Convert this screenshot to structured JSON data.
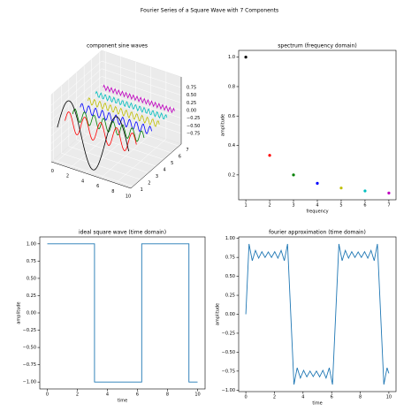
{
  "title": "Fourier Series of a Square Wave with 7 Components",
  "chart_data": [
    {
      "type": "line3d",
      "title": "component sine waves",
      "x": [
        0,
        0.121,
        0.242,
        0.362,
        0.483,
        0.604,
        0.725,
        0.846,
        0.967,
        1.087,
        1.208,
        1.329,
        1.45,
        1.571,
        1.692,
        1.812,
        1.933,
        2.054,
        2.175,
        2.296,
        2.417,
        2.537,
        2.658,
        2.779,
        2.9,
        3.021,
        3.142,
        3.262,
        3.383,
        3.504,
        3.625,
        3.746,
        3.867,
        3.987,
        4.108,
        4.229,
        4.35,
        4.471,
        4.592,
        4.712,
        4.833,
        4.954,
        5.075,
        5.196,
        5.317,
        5.437,
        5.558,
        5.679,
        5.8,
        5.921,
        6.042,
        6.162,
        6.283,
        6.404,
        6.525,
        6.646,
        6.767,
        6.887,
        7.008,
        7.129,
        7.25,
        7.371,
        7.492,
        7.612,
        7.733,
        7.854,
        7.975,
        8.096,
        8.217,
        8.337,
        8.458,
        8.579,
        8.7,
        8.821,
        8.942,
        9.062,
        9.183,
        9.304,
        9.425
      ],
      "series": [
        {
          "y": 1,
          "color": "#000000",
          "values": [
            0,
            0.121,
            0.239,
            0.355,
            0.465,
            0.568,
            0.663,
            0.749,
            0.823,
            0.885,
            0.935,
            0.971,
            0.993,
            1,
            0.993,
            0.971,
            0.935,
            0.885,
            0.823,
            0.749,
            0.663,
            0.568,
            0.465,
            0.355,
            0.239,
            0.121,
            0,
            -0.121,
            -0.239,
            -0.355,
            -0.465,
            -0.568,
            -0.663,
            -0.749,
            -0.823,
            -0.885,
            -0.935,
            -0.971,
            -0.993,
            -1,
            -0.993,
            -0.971,
            -0.935,
            -0.885,
            -0.823,
            -0.749,
            -0.663,
            -0.568,
            -0.465,
            -0.355,
            -0.239,
            -0.121,
            0,
            0.121,
            0.239,
            0.355,
            0.465,
            0.568,
            0.663,
            0.749,
            0.823,
            0.885,
            0.935,
            0.971,
            0.993,
            1,
            0.993,
            0.971,
            0.935,
            0.885,
            0.823,
            0.749,
            0.663,
            0.568,
            0.465,
            0.355,
            0.239,
            0.121,
            0
          ]
        },
        {
          "y": 2,
          "color": "#ff0000",
          "values": [
            0,
            0.118,
            0.221,
            0.295,
            0.331,
            0.324,
            0.274,
            0.189,
            0.08,
            -0.04,
            -0.155,
            -0.25,
            -0.312,
            -0.333,
            -0.312,
            -0.25,
            -0.155,
            -0.04,
            0.08,
            0.189,
            0.274,
            0.324,
            0.331,
            0.295,
            0.221,
            0.118,
            0,
            -0.118,
            -0.221,
            -0.295,
            -0.331,
            -0.324,
            -0.274,
            -0.189,
            -0.08,
            0.04,
            0.155,
            0.25,
            0.312,
            0.333,
            0.312,
            0.25,
            0.155,
            0.04,
            -0.08,
            -0.189,
            -0.274,
            -0.324,
            -0.331,
            -0.295,
            -0.221,
            -0.118,
            0,
            0.118,
            0.221,
            0.295,
            0.331,
            0.324,
            0.274,
            0.189,
            0.08,
            -0.04,
            -0.155,
            -0.25,
            -0.312,
            -0.333,
            -0.312,
            -0.25,
            -0.155,
            -0.04,
            0.08,
            0.189,
            0.274,
            0.324,
            0.331,
            0.295,
            0.221,
            0.118,
            0
          ]
        },
        {
          "y": 3,
          "color": "#008000",
          "values": [
            0,
            0.114,
            0.187,
            0.194,
            0.133,
            0.024,
            -0.093,
            -0.177,
            -0.199,
            -0.15,
            -0.048,
            0.071,
            0.165,
            0.2,
            0.165,
            0.071,
            -0.048,
            -0.15,
            -0.199,
            -0.177,
            -0.093,
            0.024,
            0.133,
            0.194,
            0.187,
            0.114,
            0,
            -0.114,
            -0.187,
            -0.194,
            -0.133,
            -0.024,
            0.093,
            0.177,
            0.199,
            0.15,
            0.048,
            -0.071,
            -0.165,
            -0.2,
            -0.165,
            -0.071,
            0.048,
            0.15,
            0.199,
            0.177,
            0.093,
            -0.024,
            -0.133,
            -0.194,
            -0.187,
            -0.114,
            0,
            0.114,
            0.187,
            0.194,
            0.133,
            0.024,
            -0.093,
            -0.177,
            -0.199,
            -0.15,
            -0.048,
            0.071,
            0.165,
            0.2,
            0.165,
            0.071,
            -0.048,
            -0.15,
            -0.199,
            -0.177,
            -0.093,
            0.024,
            0.133,
            0.194,
            0.187,
            0.114,
            0
          ]
        },
        {
          "y": 4,
          "color": "#0000ff",
          "values": [
            0,
            0.107,
            0.142,
            0.081,
            -0.034,
            -0.127,
            -0.134,
            -0.051,
            0.066,
            0.139,
            0.118,
            0.017,
            -0.095,
            -0.143,
            -0.095,
            0.017,
            0.118,
            0.139,
            0.066,
            -0.051,
            -0.134,
            -0.127,
            -0.034,
            0.081,
            0.142,
            0.107,
            0,
            -0.107,
            -0.142,
            -0.081,
            0.034,
            0.127,
            0.134,
            0.051,
            -0.066,
            -0.139,
            -0.118,
            -0.017,
            0.095,
            0.143,
            0.095,
            -0.017,
            -0.118,
            -0.139,
            -0.066,
            0.051,
            0.134,
            0.127,
            0.034,
            -0.081,
            -0.142,
            -0.107,
            0,
            0.107,
            0.142,
            0.081,
            -0.034,
            -0.127,
            -0.134,
            -0.051,
            0.066,
            0.139,
            0.118,
            0.017,
            -0.095,
            -0.143,
            -0.095,
            0.017,
            0.118,
            0.139,
            0.066,
            -0.051,
            -0.134,
            -0.127,
            -0.034,
            0.081,
            0.142,
            0.107,
            0
          ]
        },
        {
          "y": 5,
          "color": "#bfbf00",
          "values": [
            0,
            0.098,
            0.091,
            -0.013,
            -0.104,
            -0.083,
            0.027,
            0.108,
            0.074,
            -0.039,
            -0.11,
            -0.063,
            0.052,
            0.111,
            0.052,
            -0.063,
            -0.11,
            -0.039,
            0.074,
            0.108,
            0.027,
            -0.083,
            -0.104,
            -0.013,
            0.091,
            0.098,
            0,
            -0.098,
            -0.091,
            0.013,
            0.104,
            0.083,
            -0.027,
            -0.108,
            -0.074,
            0.039,
            0.11,
            0.063,
            -0.052,
            -0.111,
            -0.052,
            0.063,
            0.11,
            0.039,
            -0.074,
            -0.108,
            -0.027,
            0.083,
            0.104,
            0.013,
            -0.091,
            -0.098,
            0,
            0.098,
            0.091,
            -0.013,
            -0.104,
            -0.083,
            0.027,
            0.108,
            0.074,
            -0.039,
            -0.11,
            -0.063,
            0.052,
            0.111,
            0.052,
            -0.063,
            -0.11,
            -0.039,
            0.074,
            0.108,
            0.027,
            -0.083,
            -0.104,
            -0.013,
            0.091,
            0.098,
            0
          ]
        },
        {
          "y": 6,
          "color": "#00bfbf",
          "values": [
            0,
            0.088,
            0.042,
            -0.068,
            -0.075,
            0.032,
            0.09,
            0.011,
            -0.085,
            -0.052,
            0.06,
            0.081,
            -0.022,
            -0.091,
            -0.022,
            0.081,
            0.06,
            -0.052,
            -0.085,
            0.011,
            0.09,
            0.032,
            -0.075,
            -0.068,
            0.042,
            0.088,
            0,
            -0.088,
            -0.042,
            0.068,
            0.075,
            -0.032,
            -0.09,
            -0.011,
            0.085,
            0.052,
            -0.06,
            -0.081,
            0.022,
            0.091,
            0.022,
            -0.081,
            -0.06,
            0.052,
            0.085,
            -0.011,
            -0.09,
            -0.032,
            0.075,
            0.068,
            -0.042,
            -0.088,
            0,
            0.088,
            0.042,
            -0.068,
            -0.075,
            0.032,
            0.09,
            0.011,
            -0.085,
            -0.052,
            0.06,
            0.081,
            -0.022,
            -0.091,
            -0.022,
            0.081,
            0.06,
            -0.052,
            -0.085,
            0.011,
            0.09,
            0.032,
            -0.075,
            -0.068,
            0.042,
            0.088,
            0
          ]
        },
        {
          "y": 7,
          "color": "#bf00bf",
          "values": [
            0,
            0.077,
            0,
            -0.077,
            0,
            0.077,
            0,
            -0.077,
            0,
            0.077,
            0,
            -0.077,
            0,
            0.077,
            0,
            -0.077,
            0,
            0.077,
            0,
            -0.077,
            0,
            0.077,
            0,
            -0.077,
            0,
            0.077,
            0,
            -0.077,
            0,
            0.077,
            0,
            -0.077,
            0,
            0.077,
            0,
            -0.077,
            0,
            0.077,
            0,
            -0.077,
            0,
            0.077,
            0,
            -0.077,
            0,
            0.077,
            0,
            -0.077,
            0,
            0.077,
            0,
            -0.077,
            0,
            0.077,
            0,
            -0.077,
            0,
            0.077,
            0,
            -0.077,
            0,
            0.077,
            0,
            -0.077,
            0,
            0.077,
            0,
            -0.077,
            0,
            0.077,
            0,
            -0.077,
            0,
            0.077,
            0,
            -0.077,
            0,
            0.077,
            0
          ]
        }
      ],
      "xlim": [
        -0.5,
        10
      ],
      "ylim": [
        0.7,
        7.3
      ],
      "zlim": [
        -1.1,
        1.1
      ],
      "xticks": [
        0,
        2,
        4,
        6,
        8,
        10
      ],
      "yticks": [
        1,
        2,
        3,
        4,
        5,
        6,
        7
      ],
      "zticks": [
        {
          "value": -0.75,
          "label": "−0.75"
        },
        {
          "value": -0.5,
          "label": "−0.50"
        },
        {
          "value": -0.25,
          "label": "−0.25"
        },
        {
          "value": 0,
          "label": "0.00"
        },
        0.25,
        {
          "value": 0.5,
          "label": "0.50"
        },
        0.75
      ]
    },
    {
      "type": "scatter",
      "title": "spectrum (frequency domain)",
      "xlabel": "frequency",
      "ylabel": "amplitude",
      "x": [
        1,
        2,
        3,
        4,
        5,
        6,
        7
      ],
      "values": [
        1,
        0.333,
        0.2,
        0.143,
        0.111,
        0.091,
        0.077
      ],
      "colors": [
        "#000000",
        "#ff0000",
        "#008000",
        "#0000ff",
        "#bfbf00",
        "#00bfbf",
        "#bf00bf"
      ],
      "xlim": [
        0.7,
        7.3
      ],
      "ylim": [
        0.031,
        1.046
      ],
      "xticks": [
        1,
        2,
        3,
        4,
        5,
        6,
        7
      ],
      "yticks": [
        0.2,
        0.4,
        0.6,
        0.8,
        {
          "value": 1,
          "label": "1.0"
        }
      ]
    },
    {
      "type": "line",
      "title": "ideal square wave (time domain)",
      "xlabel": "time",
      "ylabel": "amplitude",
      "color": "#1f77b4",
      "x": [
        0,
        3.142,
        3.142,
        6.283,
        6.283,
        9.425,
        9.425,
        10
      ],
      "values": [
        1,
        1,
        -1,
        -1,
        1,
        1,
        -1,
        -1
      ],
      "xlim": [
        -0.5,
        10.5
      ],
      "ylim": [
        -1.1,
        1.1
      ],
      "xticks": [
        0,
        2,
        4,
        6,
        8,
        10
      ],
      "yticks": [
        {
          "value": -1,
          "label": "−1.00"
        },
        {
          "value": -0.75,
          "label": "−0.75"
        },
        {
          "value": -0.5,
          "label": "−0.50"
        },
        {
          "value": -0.25,
          "label": "−0.25"
        },
        {
          "value": 0,
          "label": "0.00"
        },
        0.25,
        {
          "value": 0.5,
          "label": "0.50"
        },
        0.75,
        {
          "value": 1,
          "label": "1.00"
        }
      ]
    },
    {
      "type": "line",
      "title": "fourier approximation (time domain)",
      "xlabel": "time",
      "ylabel": "amplitude",
      "color": "#1f77b4",
      "x": [
        0,
        0.224,
        0.449,
        0.673,
        0.898,
        1.122,
        1.346,
        1.571,
        1.795,
        2.02,
        2.244,
        2.468,
        2.693,
        2.917,
        3.142,
        3.366,
        3.59,
        3.815,
        4.039,
        4.264,
        4.488,
        4.712,
        4.937,
        5.161,
        5.386,
        5.61,
        5.834,
        6.059,
        6.283,
        6.507,
        6.732,
        6.956,
        7.181,
        7.405,
        7.629,
        7.854,
        8.078,
        8.303,
        8.527,
        8.752,
        8.976,
        9.2,
        9.425,
        9.649,
        9.874,
        10
      ],
      "values": [
        0,
        0.927,
        0.706,
        0.842,
        0.74,
        0.825,
        0.749,
        0.821,
        0.749,
        0.825,
        0.74,
        0.842,
        0.706,
        0.927,
        0,
        -0.927,
        -0.706,
        -0.842,
        -0.74,
        -0.825,
        -0.749,
        -0.821,
        -0.749,
        -0.825,
        -0.74,
        -0.842,
        -0.706,
        -0.927,
        0,
        0.927,
        0.706,
        0.842,
        0.74,
        0.825,
        0.749,
        0.821,
        0.749,
        0.825,
        0.74,
        0.842,
        0.706,
        0.927,
        0,
        -0.927,
        -0.706,
        -0.78
      ],
      "xlim": [
        -0.5,
        10.5
      ],
      "ylim": [
        -1.02,
        1.02
      ],
      "xticks": [
        0,
        2,
        4,
        6,
        8,
        10
      ],
      "yticks": [
        {
          "value": -1,
          "label": "−1.00"
        },
        {
          "value": -0.75,
          "label": "−0.75"
        },
        {
          "value": -0.5,
          "label": "−0.50"
        },
        {
          "value": -0.25,
          "label": "−0.25"
        },
        {
          "value": 0,
          "label": "0.00"
        },
        0.25,
        {
          "value": 0.5,
          "label": "0.50"
        },
        0.75,
        {
          "value": 1,
          "label": "1.00"
        }
      ]
    }
  ]
}
